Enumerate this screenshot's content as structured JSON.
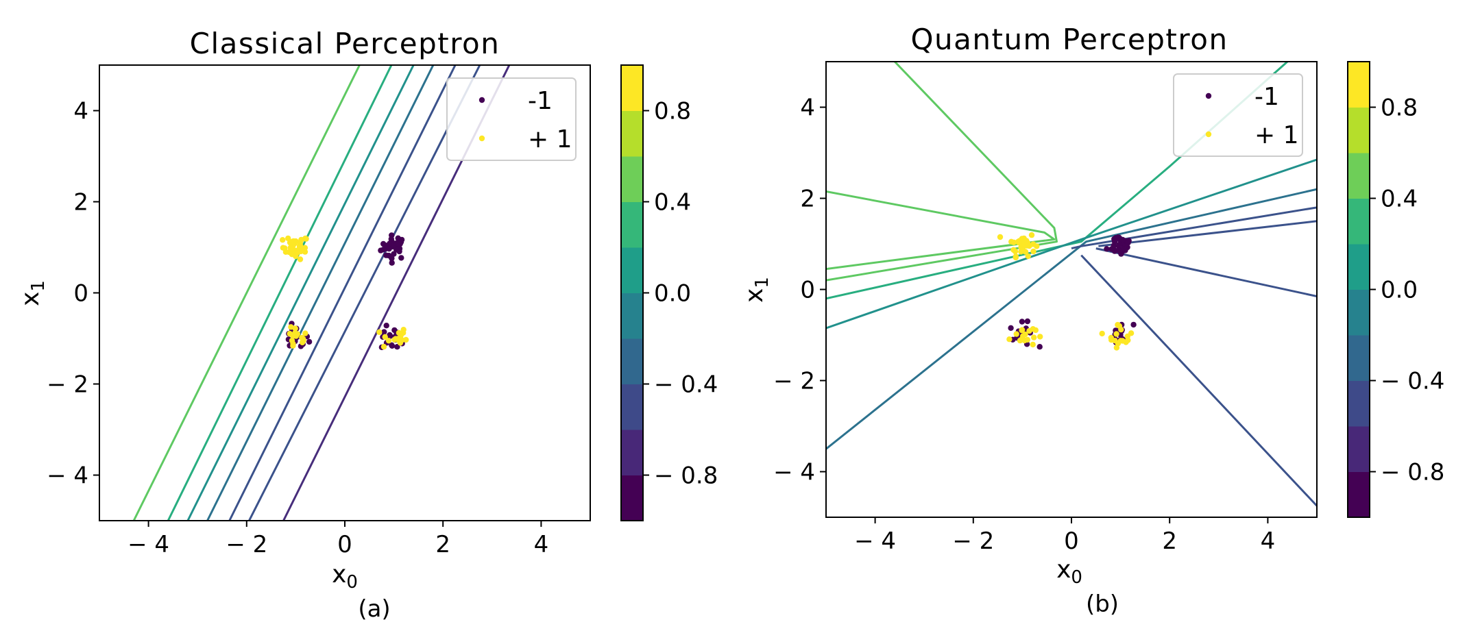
{
  "figure": {
    "captions": [
      "(a)",
      "(b)"
    ]
  },
  "colors": {
    "viridis_levels": [
      "#440154",
      "#472d7b",
      "#3b528b",
      "#2c728e",
      "#21918c",
      "#28ae80",
      "#5ec962",
      "#addc30",
      "#fde725"
    ],
    "class_neg": "#440154",
    "class_pos": "#fde725"
  },
  "chart_data": [
    {
      "type": "contour",
      "title": "Classical Perceptron",
      "xlabel": "x0",
      "ylabel": "x1",
      "xlim": [
        -5,
        5
      ],
      "ylim": [
        -5,
        5
      ],
      "xticks": [
        -4,
        -2,
        0,
        2,
        4
      ],
      "yticks": [
        -4,
        -2,
        0,
        2,
        4
      ],
      "xtick_labels": [
        "− 4",
        "− 2",
        "0",
        "2",
        "4"
      ],
      "ytick_labels": [
        "4",
        "2",
        "0",
        "− 2",
        "− 4"
      ],
      "legend": {
        "position": "upper right",
        "entries": [
          "-1",
          "+ 1"
        ]
      },
      "colorbar": {
        "ticks": [
          0.8,
          0.4,
          0.0,
          -0.4,
          -0.8
        ],
        "tick_labels": [
          "0.8",
          "0.4",
          "0.0",
          "− 0.4",
          "− 0.8"
        ],
        "range": [
          -1,
          1
        ]
      },
      "contour_lines": [
        {
          "level": -0.8,
          "points": [
            [
              -1.25,
              -5.0
            ],
            [
              3.35,
              5.0
            ]
          ]
        },
        {
          "level": -0.6,
          "points": [
            [
              -1.95,
              -5.0
            ],
            [
              2.75,
              5.0
            ]
          ]
        },
        {
          "level": -0.4,
          "points": [
            [
              -2.35,
              -5.0
            ],
            [
              2.25,
              5.0
            ]
          ]
        },
        {
          "level": -0.2,
          "points": [
            [
              -2.8,
              -5.0
            ],
            [
              1.8,
              5.0
            ]
          ]
        },
        {
          "level": 0.0,
          "points": [
            [
              -3.2,
              -5.0
            ],
            [
              1.4,
              5.0
            ]
          ]
        },
        {
          "level": 0.2,
          "points": [
            [
              -3.6,
              -5.0
            ],
            [
              0.95,
              5.0
            ]
          ]
        },
        {
          "level": 0.4,
          "points": [
            [
              -4.3,
              -5.0
            ],
            [
              0.3,
              5.0
            ]
          ]
        }
      ],
      "scatter_clusters": [
        {
          "label": "-1",
          "center": [
            1.0,
            1.0
          ],
          "n": 32
        },
        {
          "label": "+ 1",
          "center": [
            -1.0,
            1.0
          ],
          "n": 32
        },
        {
          "label": "-1",
          "center": [
            -1.0,
            -1.0
          ],
          "n": 16
        },
        {
          "label": "+ 1",
          "center": [
            -1.0,
            -1.0
          ],
          "n": 16
        },
        {
          "label": "-1",
          "center": [
            1.0,
            -1.0
          ],
          "n": 16
        },
        {
          "label": "+ 1",
          "center": [
            1.0,
            -1.0
          ],
          "n": 16
        }
      ]
    },
    {
      "type": "contour",
      "title": "Quantum Perceptron",
      "xlabel": "x0",
      "ylabel": "x1",
      "xlim": [
        -5,
        5
      ],
      "ylim": [
        -5,
        5
      ],
      "xticks": [
        -4,
        -2,
        0,
        2,
        4
      ],
      "yticks": [
        -4,
        -2,
        0,
        2,
        4
      ],
      "xtick_labels": [
        "− 4",
        "− 2",
        "0",
        "2",
        "4"
      ],
      "ytick_labels": [
        "4",
        "2",
        "0",
        "− 2",
        "− 4"
      ],
      "legend": {
        "position": "upper right",
        "entries": [
          "-1",
          "+ 1"
        ]
      },
      "colorbar": {
        "ticks": [
          0.8,
          0.4,
          0.0,
          -0.4,
          -0.8
        ],
        "tick_labels": [
          "0.8",
          "0.4",
          "0.0",
          "− 0.4",
          "− 0.8"
        ],
        "range": [
          -1,
          1
        ]
      },
      "contour_lines": [
        {
          "level": 0.6,
          "points": [
            [
              -5.0,
              2.15
            ],
            [
              -0.55,
              1.25
            ],
            [
              -0.35,
              1.1
            ],
            [
              -5.0,
              0.45
            ]
          ]
        },
        {
          "level": 0.4,
          "points": [
            [
              -3.6,
              5.0
            ],
            [
              -0.35,
              1.35
            ],
            [
              -0.3,
              1.05
            ],
            [
              -5.0,
              0.2
            ]
          ]
        },
        {
          "level": 0.2,
          "points": [
            [
              -5.0,
              -0.2
            ],
            [
              0.2,
              1.05
            ],
            [
              2.0,
              2.7
            ],
            [
              4.4,
              5.0
            ]
          ]
        },
        {
          "level": 0.0,
          "points": [
            [
              -5.0,
              -0.85
            ],
            [
              0.2,
              1.1
            ],
            [
              5.0,
              2.85
            ]
          ]
        },
        {
          "level": -0.2,
          "points": [
            [
              -5.0,
              -3.5
            ],
            [
              0.3,
              1.05
            ],
            [
              5.0,
              2.2
            ]
          ]
        },
        {
          "level": -0.4,
          "points": [
            [
              0.0,
              0.9
            ],
            [
              0.2,
              0.95
            ],
            [
              5.0,
              1.8
            ]
          ]
        },
        {
          "level": -0.6,
          "points": [
            [
              0.55,
              0.95
            ],
            [
              5.0,
              1.5
            ]
          ]
        },
        {
          "level": -0.6,
          "points": [
            [
              0.5,
              0.9
            ],
            [
              5.0,
              -0.15
            ]
          ]
        },
        {
          "level": -0.6,
          "points": [
            [
              0.2,
              0.75
            ],
            [
              5.0,
              -4.75
            ]
          ]
        }
      ],
      "scatter_clusters": [
        {
          "label": "-1",
          "center": [
            1.0,
            1.0
          ],
          "n": 32
        },
        {
          "label": "+ 1",
          "center": [
            -1.0,
            1.0
          ],
          "n": 32
        },
        {
          "label": "-1",
          "center": [
            -1.0,
            -1.0
          ],
          "n": 16
        },
        {
          "label": "+ 1",
          "center": [
            -1.0,
            -1.0
          ],
          "n": 16
        },
        {
          "label": "-1",
          "center": [
            1.0,
            -1.0
          ],
          "n": 16
        },
        {
          "label": "+ 1",
          "center": [
            1.0,
            -1.0
          ],
          "n": 16
        }
      ]
    }
  ]
}
